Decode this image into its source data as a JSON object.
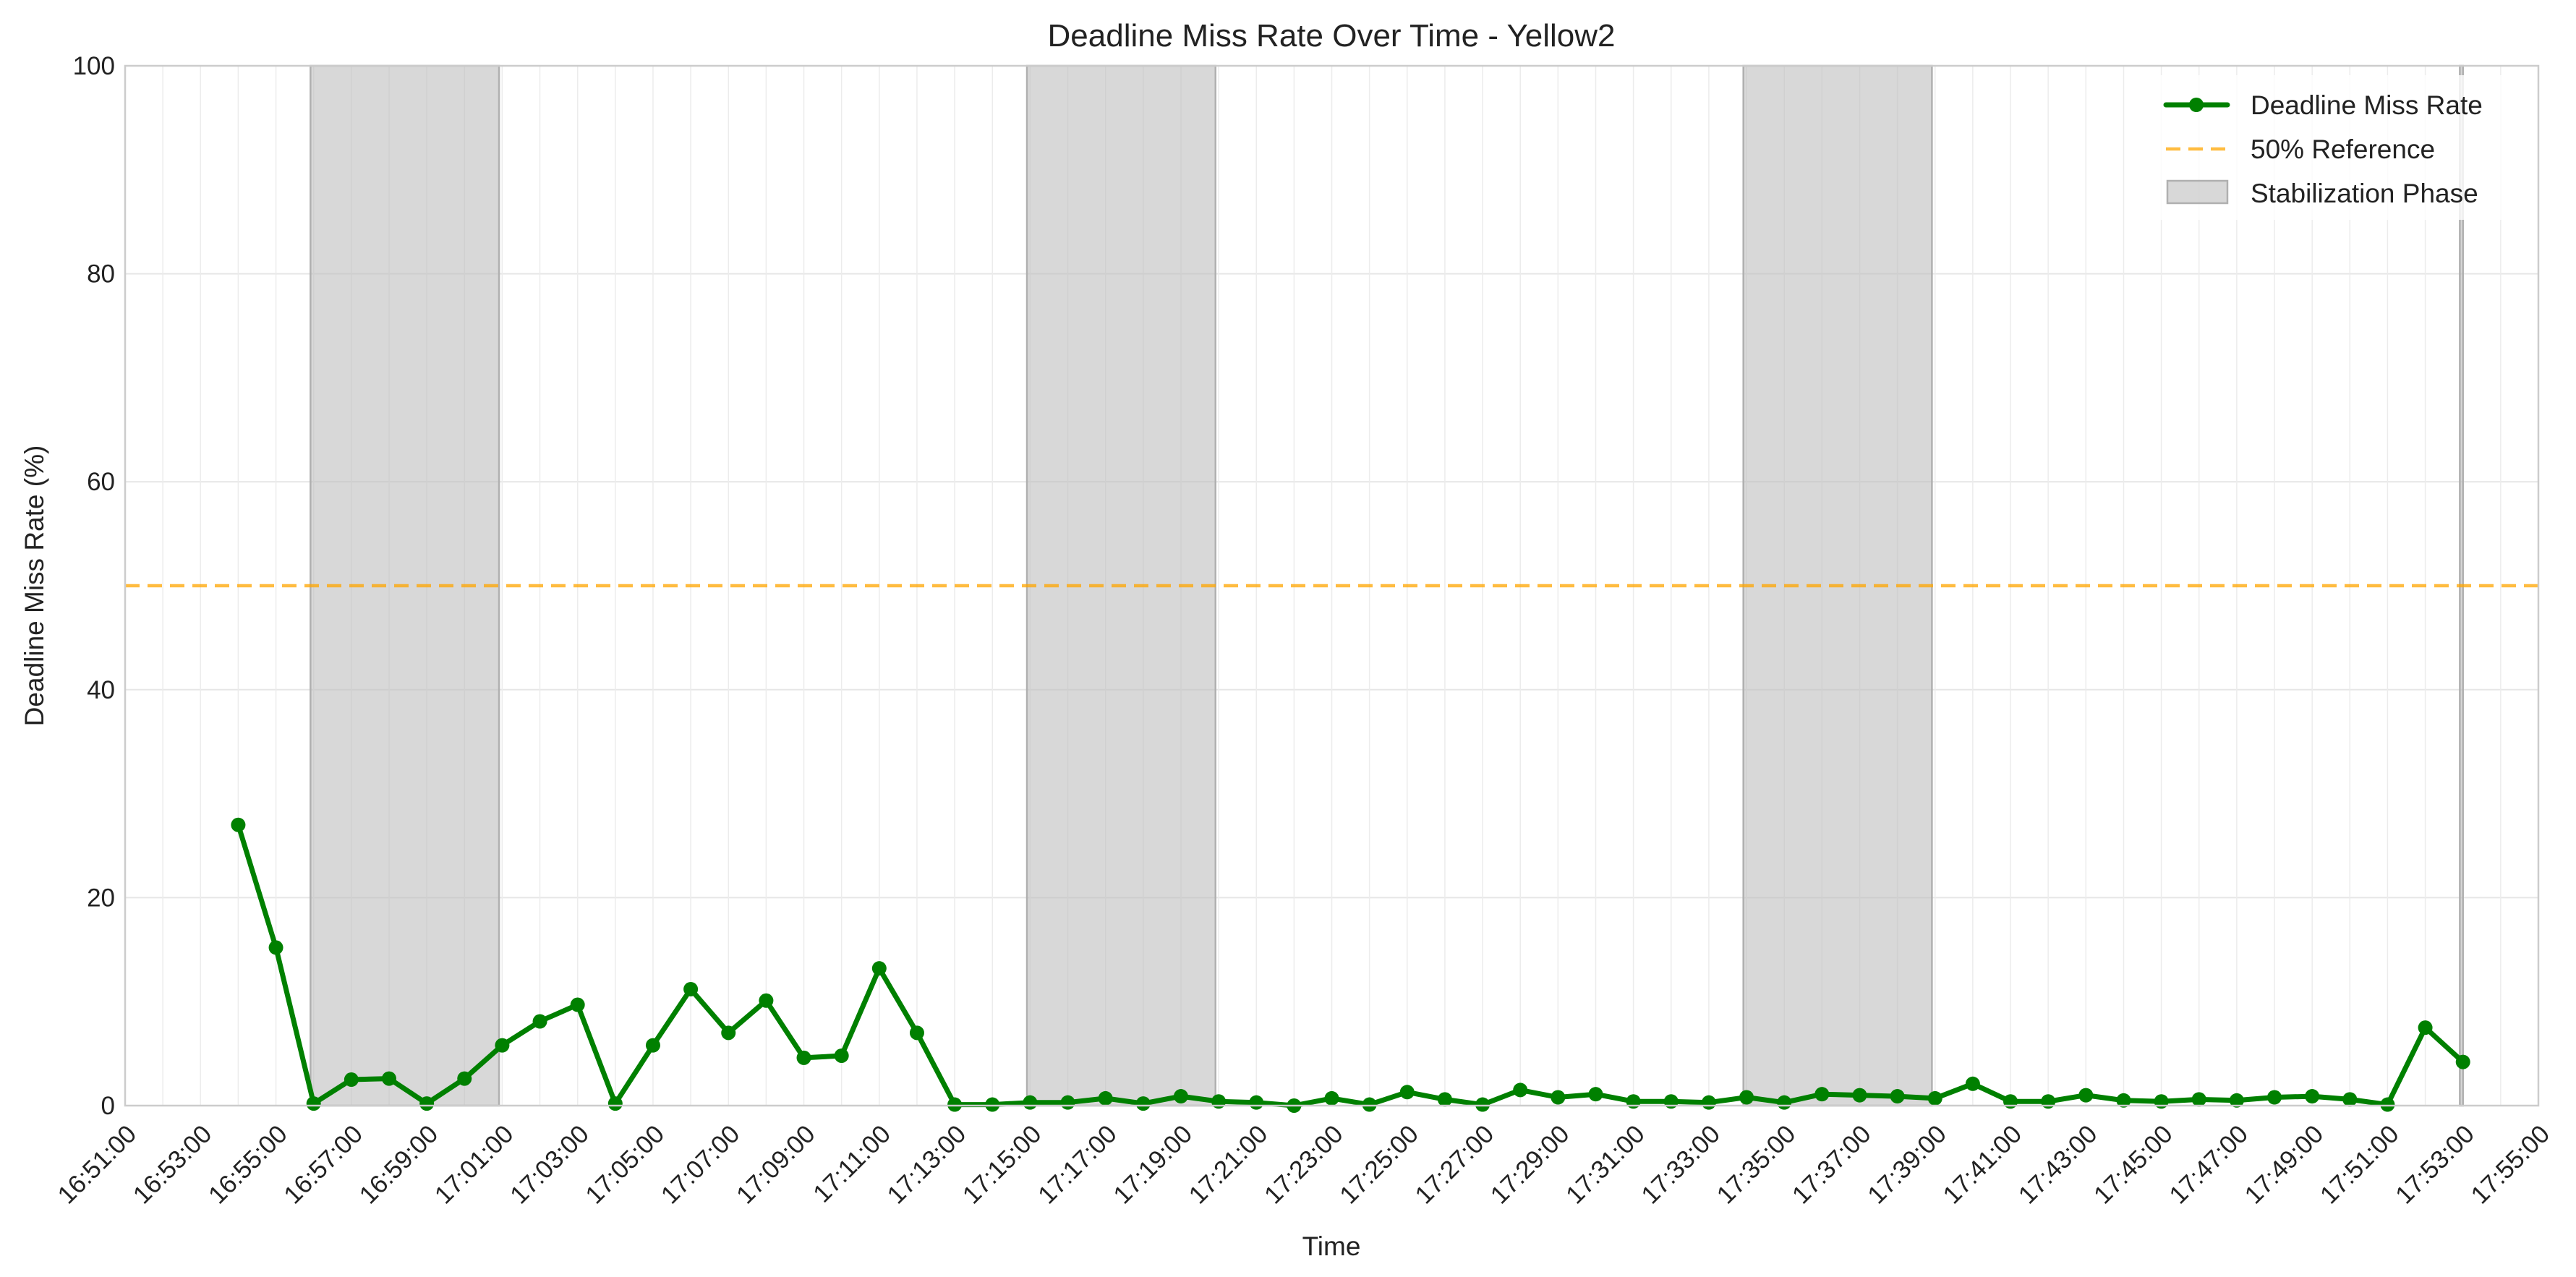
{
  "chart_data": {
    "type": "line",
    "title": "Deadline Miss Rate Over Time - Yellow2",
    "xlabel": "Time",
    "ylabel": "Deadline Miss Rate (%)",
    "ylim": [
      0,
      100
    ],
    "yticks": [
      0,
      20,
      40,
      60,
      80,
      100
    ],
    "xlim": [
      "16:51:00",
      "17:55:00"
    ],
    "xticks": [
      "16:51:00",
      "16:53:00",
      "16:55:00",
      "16:57:00",
      "16:59:00",
      "17:01:00",
      "17:03:00",
      "17:05:00",
      "17:07:00",
      "17:09:00",
      "17:11:00",
      "17:13:00",
      "17:15:00",
      "17:17:00",
      "17:19:00",
      "17:21:00",
      "17:23:00",
      "17:25:00",
      "17:27:00",
      "17:29:00",
      "17:31:00",
      "17:33:00",
      "17:35:00",
      "17:37:00",
      "17:39:00",
      "17:41:00",
      "17:43:00",
      "17:45:00",
      "17:47:00",
      "17:49:00",
      "17:51:00",
      "17:53:00",
      "17:55:00"
    ],
    "grid": true,
    "legend_position": "top-right",
    "series": [
      {
        "name": "Deadline Miss Rate",
        "color": "#008000",
        "marker": "circle",
        "points": [
          [
            "16:54:00",
            27.0
          ],
          [
            "16:55:00",
            15.2
          ],
          [
            "16:56:00",
            0.2
          ],
          [
            "16:57:00",
            2.5
          ],
          [
            "16:58:00",
            2.6
          ],
          [
            "16:59:00",
            0.2
          ],
          [
            "17:00:00",
            2.6
          ],
          [
            "17:01:00",
            5.8
          ],
          [
            "17:02:00",
            8.1
          ],
          [
            "17:03:00",
            9.7
          ],
          [
            "17:04:00",
            0.2
          ],
          [
            "17:05:00",
            5.8
          ],
          [
            "17:06:00",
            11.2
          ],
          [
            "17:07:00",
            7.0
          ],
          [
            "17:08:00",
            10.1
          ],
          [
            "17:09:00",
            4.6
          ],
          [
            "17:10:00",
            4.8
          ],
          [
            "17:11:00",
            13.2
          ],
          [
            "17:12:00",
            7.0
          ],
          [
            "17:13:00",
            0.1
          ],
          [
            "17:14:00",
            0.1
          ],
          [
            "17:15:00",
            0.3
          ],
          [
            "17:16:00",
            0.3
          ],
          [
            "17:17:00",
            0.7
          ],
          [
            "17:18:00",
            0.2
          ],
          [
            "17:19:00",
            0.9
          ],
          [
            "17:20:00",
            0.4
          ],
          [
            "17:21:00",
            0.3
          ],
          [
            "17:22:00",
            0.0
          ],
          [
            "17:23:00",
            0.7
          ],
          [
            "17:24:00",
            0.1
          ],
          [
            "17:25:00",
            1.3
          ],
          [
            "17:26:00",
            0.6
          ],
          [
            "17:27:00",
            0.1
          ],
          [
            "17:28:00",
            1.5
          ],
          [
            "17:29:00",
            0.8
          ],
          [
            "17:30:00",
            1.1
          ],
          [
            "17:31:00",
            0.4
          ],
          [
            "17:32:00",
            0.4
          ],
          [
            "17:33:00",
            0.3
          ],
          [
            "17:34:00",
            0.8
          ],
          [
            "17:35:00",
            0.3
          ],
          [
            "17:36:00",
            1.1
          ],
          [
            "17:37:00",
            1.0
          ],
          [
            "17:38:00",
            0.9
          ],
          [
            "17:39:00",
            0.7
          ],
          [
            "17:40:00",
            2.1
          ],
          [
            "17:41:00",
            0.4
          ],
          [
            "17:42:00",
            0.4
          ],
          [
            "17:43:00",
            1.0
          ],
          [
            "17:44:00",
            0.5
          ],
          [
            "17:45:00",
            0.4
          ],
          [
            "17:46:00",
            0.6
          ],
          [
            "17:47:00",
            0.5
          ],
          [
            "17:48:00",
            0.8
          ],
          [
            "17:49:00",
            0.9
          ],
          [
            "17:50:00",
            0.6
          ],
          [
            "17:51:00",
            0.1
          ],
          [
            "17:52:00",
            7.5
          ],
          [
            "17:53:00",
            4.2
          ]
        ]
      }
    ],
    "reference_line": {
      "name": "50% Reference",
      "value": 50,
      "color": "#FFA500",
      "style": "dashed"
    },
    "shaded_regions": {
      "name": "Stabilization Phase",
      "color": "#BEBEBE",
      "ranges": [
        [
          "16:55:55",
          "17:00:55"
        ],
        [
          "17:14:55",
          "17:19:55"
        ],
        [
          "17:33:55",
          "17:38:55"
        ],
        [
          "17:52:55",
          "17:53:00"
        ]
      ]
    }
  }
}
